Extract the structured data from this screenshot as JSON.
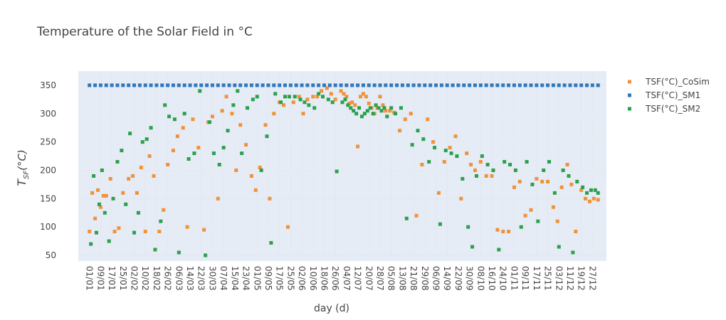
{
  "chart_data": {
    "type": "scatter",
    "title": "Temperature of the Solar Field in °C",
    "xlabel": "day (d)",
    "ylabel": "T_{SF}(°C)",
    "ylabel_main": "T",
    "ylabel_sub": "SF",
    "ylabel_tail": "(°C)",
    "ylim": [
      40,
      375
    ],
    "y_ticks": [
      50,
      100,
      150,
      200,
      250,
      300,
      350
    ],
    "xlim": [
      -8,
      370
    ],
    "x_tick_days": [
      0,
      8,
      16,
      24,
      32,
      40,
      48,
      56,
      64,
      72,
      80,
      88,
      96,
      104,
      112,
      120,
      128,
      136,
      144,
      152,
      160,
      168,
      176,
      184,
      192,
      200,
      208,
      216,
      224,
      232,
      240,
      248,
      256,
      264,
      272,
      280,
      288,
      296,
      304,
      312,
      320,
      328,
      336,
      344,
      352,
      360
    ],
    "x_tick_labels": [
      "01/01",
      "09/01",
      "17/01",
      "25/01",
      "02/02",
      "10/02",
      "18/02",
      "26/02",
      "06/03",
      "14/03",
      "22/03",
      "30/03",
      "07/04",
      "15/04",
      "23/04",
      "01/05",
      "09/05",
      "17/05",
      "25/05",
      "02/06",
      "10/06",
      "18/06",
      "26/06",
      "04/07",
      "12/07",
      "20/07",
      "28/07",
      "05/08",
      "13/08",
      "21/08",
      "29/08",
      "06/09",
      "14/09",
      "22/09",
      "30/09",
      "08/10",
      "16/10",
      "24/10",
      "01/11",
      "09/11",
      "17/11",
      "25/11",
      "03/12",
      "11/12",
      "19/12",
      "27/12"
    ],
    "legend_position": "top-right",
    "grid": true,
    "series": [
      {
        "name": "TSF(°C)_CoSim",
        "color": "#f0923a",
        "marker": "square",
        "x": [
          0,
          2,
          4,
          6,
          8,
          10,
          12,
          15,
          18,
          21,
          24,
          28,
          31,
          34,
          37,
          40,
          43,
          46,
          50,
          53,
          56,
          60,
          63,
          67,
          70,
          74,
          78,
          82,
          85,
          88,
          92,
          95,
          98,
          102,
          105,
          108,
          112,
          116,
          119,
          122,
          126,
          129,
          132,
          136,
          139,
          142,
          146,
          150,
          153,
          156,
          160,
          163,
          166,
          170,
          173,
          176,
          180,
          182,
          184,
          186,
          188,
          190,
          192,
          194,
          196,
          198,
          200,
          202,
          204,
          206,
          208,
          210,
          212,
          215,
          218,
          222,
          226,
          230,
          234,
          238,
          242,
          246,
          250,
          254,
          258,
          262,
          266,
          270,
          273,
          276,
          280,
          284,
          288,
          292,
          296,
          300,
          304,
          308,
          312,
          316,
          320,
          324,
          328,
          332,
          335,
          338,
          342,
          345,
          348,
          352,
          355,
          358,
          361,
          364
        ],
        "y": [
          92,
          160,
          115,
          165,
          135,
          155,
          155,
          185,
          92,
          98,
          160,
          185,
          190,
          160,
          205,
          92,
          225,
          190,
          92,
          130,
          210,
          235,
          260,
          275,
          100,
          290,
          240,
          95,
          285,
          295,
          150,
          305,
          330,
          300,
          200,
          280,
          245,
          190,
          165,
          205,
          280,
          150,
          300,
          320,
          315,
          100,
          320,
          330,
          300,
          325,
          330,
          330,
          340,
          345,
          335,
          325,
          340,
          335,
          330,
          318,
          320,
          315,
          242,
          330,
          335,
          330,
          318,
          310,
          300,
          310,
          330,
          315,
          305,
          305,
          302,
          270,
          290,
          300,
          120,
          210,
          290,
          250,
          160,
          215,
          240,
          260,
          150,
          230,
          210,
          200,
          215,
          190,
          190,
          95,
          92,
          92,
          170,
          180,
          120,
          130,
          185,
          180,
          180,
          135,
          110,
          170,
          210,
          175,
          92,
          165,
          150,
          145,
          150,
          148
        ]
      },
      {
        "name": "TSF(°C)_SM1",
        "color": "#2f78bd",
        "marker": "square",
        "x": [
          0,
          4,
          8,
          12,
          16,
          20,
          24,
          28,
          32,
          36,
          40,
          44,
          48,
          52,
          56,
          60,
          64,
          68,
          72,
          76,
          80,
          84,
          88,
          92,
          96,
          100,
          104,
          108,
          112,
          116,
          120,
          124,
          128,
          132,
          136,
          140,
          144,
          148,
          152,
          156,
          160,
          164,
          168,
          172,
          176,
          180,
          184,
          188,
          192,
          196,
          200,
          204,
          208,
          212,
          216,
          220,
          224,
          228,
          232,
          236,
          240,
          244,
          248,
          252,
          256,
          260,
          264,
          268,
          272,
          276,
          280,
          284,
          288,
          292,
          296,
          300,
          304,
          308,
          312,
          316,
          320,
          324,
          328,
          332,
          336,
          340,
          344,
          348,
          352,
          356,
          360,
          364
        ],
        "y": [
          350,
          350,
          350,
          350,
          350,
          350,
          350,
          350,
          350,
          350,
          350,
          350,
          350,
          350,
          350,
          350,
          350,
          350,
          350,
          350,
          350,
          350,
          350,
          350,
          350,
          350,
          350,
          350,
          350,
          350,
          350,
          350,
          350,
          350,
          350,
          350,
          350,
          350,
          350,
          350,
          350,
          350,
          350,
          350,
          350,
          350,
          350,
          350,
          350,
          350,
          350,
          350,
          350,
          350,
          350,
          350,
          350,
          350,
          350,
          350,
          350,
          350,
          350,
          350,
          350,
          350,
          350,
          350,
          350,
          350,
          350,
          350,
          350,
          350,
          350,
          350,
          350,
          350,
          350,
          350,
          350,
          350,
          350,
          350,
          350,
          350,
          350,
          350,
          350,
          350,
          350,
          350
        ]
      },
      {
        "name": "TSF(°C)_SM2",
        "color": "#2ca04c",
        "marker": "square",
        "x": [
          1,
          3,
          5,
          7,
          9,
          11,
          14,
          17,
          20,
          23,
          26,
          29,
          32,
          35,
          38,
          41,
          44,
          47,
          51,
          54,
          57,
          61,
          64,
          68,
          71,
          75,
          79,
          83,
          86,
          89,
          93,
          96,
          99,
          103,
          106,
          109,
          113,
          117,
          120,
          123,
          127,
          130,
          133,
          137,
          140,
          143,
          147,
          151,
          154,
          157,
          161,
          164,
          167,
          171,
          174,
          177,
          181,
          183,
          185,
          187,
          189,
          191,
          193,
          195,
          197,
          199,
          201,
          203,
          205,
          207,
          209,
          211,
          213,
          216,
          219,
          223,
          227,
          231,
          235,
          239,
          243,
          247,
          251,
          255,
          259,
          263,
          267,
          271,
          274,
          277,
          281,
          285,
          289,
          293,
          297,
          301,
          305,
          309,
          313,
          317,
          321,
          325,
          329,
          333,
          336,
          339,
          343,
          346,
          349,
          353,
          356,
          359,
          362,
          364
        ],
        "y": [
          70,
          190,
          90,
          140,
          200,
          125,
          75,
          150,
          215,
          235,
          140,
          265,
          90,
          125,
          250,
          255,
          275,
          60,
          110,
          315,
          295,
          290,
          55,
          300,
          220,
          230,
          340,
          50,
          285,
          230,
          210,
          240,
          270,
          315,
          340,
          230,
          310,
          325,
          330,
          200,
          260,
          72,
          335,
          320,
          330,
          330,
          330,
          325,
          320,
          315,
          310,
          335,
          330,
          325,
          320,
          198,
          320,
          325,
          315,
          310,
          305,
          300,
          310,
          295,
          300,
          305,
          310,
          300,
          315,
          310,
          305,
          310,
          295,
          310,
          300,
          310,
          115,
          245,
          270,
          255,
          215,
          240,
          105,
          235,
          230,
          225,
          185,
          100,
          65,
          190,
          225,
          210,
          200,
          60,
          215,
          210,
          200,
          100,
          215,
          175,
          110,
          200,
          215,
          160,
          65,
          200,
          190,
          55,
          180,
          170,
          160,
          165,
          165,
          160
        ]
      }
    ]
  }
}
